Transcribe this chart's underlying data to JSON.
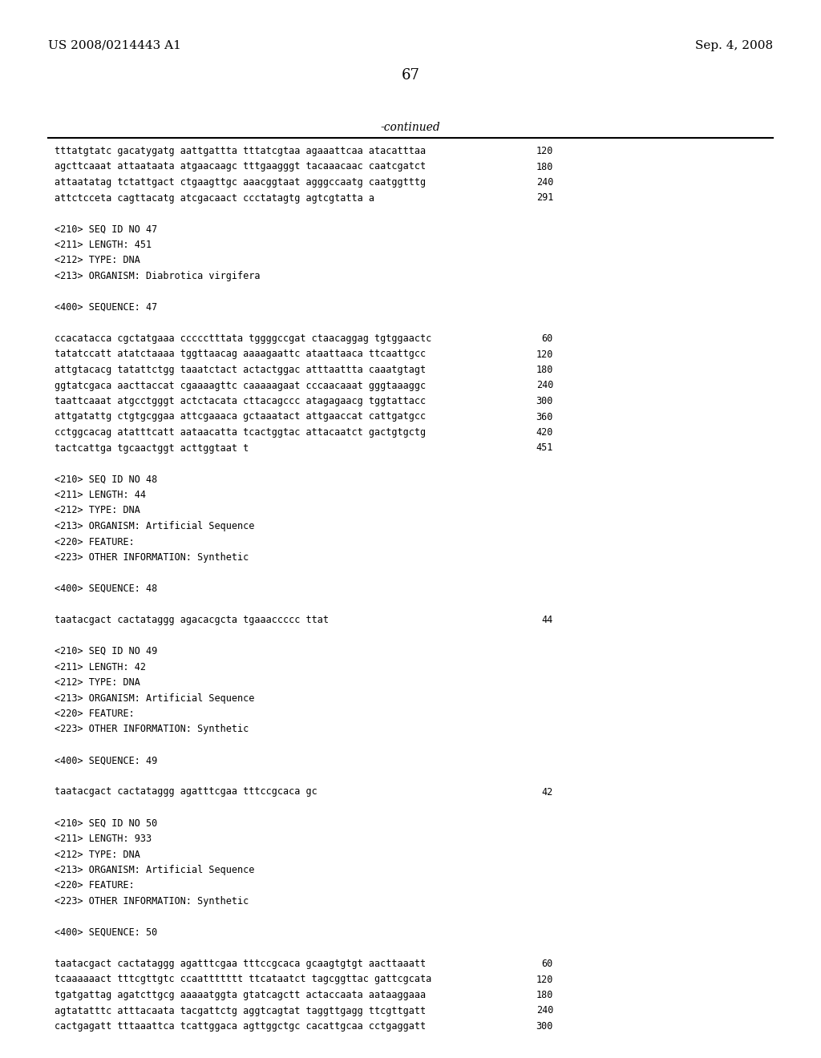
{
  "header_left": "US 2008/0214443 A1",
  "header_right": "Sep. 4, 2008",
  "page_number": "67",
  "continued_label": "-continued",
  "background_color": "#ffffff",
  "text_color": "#000000",
  "lines": [
    {
      "text": "tttatgtatc gacatygatg aattgattta tttatcgtaa agaaattcaa atacatttaa",
      "num": "120",
      "mono": true
    },
    {
      "text": "agcttcaaat attaataata atgaacaagc tttgaagggt tacaaacaac caatcgatct",
      "num": "180",
      "mono": true
    },
    {
      "text": "attaatatag tctattgact ctgaagttgc aaacggtaat agggccaatg caatggtttg",
      "num": "240",
      "mono": true
    },
    {
      "text": "attctcceta cagttacatg atcgacaact ccctatagtg agtcgtatta a",
      "num": "291",
      "mono": true
    },
    {
      "text": "",
      "num": "",
      "mono": false
    },
    {
      "text": "<210> SEQ ID NO 47",
      "num": "",
      "mono": true
    },
    {
      "text": "<211> LENGTH: 451",
      "num": "",
      "mono": true
    },
    {
      "text": "<212> TYPE: DNA",
      "num": "",
      "mono": true
    },
    {
      "text": "<213> ORGANISM: Diabrotica virgifera",
      "num": "",
      "mono": true
    },
    {
      "text": "",
      "num": "",
      "mono": false
    },
    {
      "text": "<400> SEQUENCE: 47",
      "num": "",
      "mono": true
    },
    {
      "text": "",
      "num": "",
      "mono": false
    },
    {
      "text": "ccacatacca cgctatgaaa ccccctttata tggggccgat ctaacaggag tgtggaactc",
      "num": "60",
      "mono": true
    },
    {
      "text": "tatatccatt atatctaaaa tggttaacag aaaagaattc ataattaaca ttcaattgcc",
      "num": "120",
      "mono": true
    },
    {
      "text": "attgtacacg tatattctgg taaatctact actactggac atttaattta caaatgtagt",
      "num": "180",
      "mono": true
    },
    {
      "text": "ggtatcgaca aacttaccat cgaaaagttc caaaaagaat cccaacaaat gggtaaaggc",
      "num": "240",
      "mono": true
    },
    {
      "text": "taattcaaat atgcctgggt actctacata cttacagccc atagagaacg tggtattacc",
      "num": "300",
      "mono": true
    },
    {
      "text": "attgatattg ctgtgcggaa attcgaaaca gctaaatact attgaaccat cattgatgcc",
      "num": "360",
      "mono": true
    },
    {
      "text": "cctggcacag atatttcatt aataacatta tcactggtac attacaatct gactgtgctg",
      "num": "420",
      "mono": true
    },
    {
      "text": "tactcattga tgcaactggt acttggtaat t",
      "num": "451",
      "mono": true
    },
    {
      "text": "",
      "num": "",
      "mono": false
    },
    {
      "text": "<210> SEQ ID NO 48",
      "num": "",
      "mono": true
    },
    {
      "text": "<211> LENGTH: 44",
      "num": "",
      "mono": true
    },
    {
      "text": "<212> TYPE: DNA",
      "num": "",
      "mono": true
    },
    {
      "text": "<213> ORGANISM: Artificial Sequence",
      "num": "",
      "mono": true
    },
    {
      "text": "<220> FEATURE:",
      "num": "",
      "mono": true
    },
    {
      "text": "<223> OTHER INFORMATION: Synthetic",
      "num": "",
      "mono": true
    },
    {
      "text": "",
      "num": "",
      "mono": false
    },
    {
      "text": "<400> SEQUENCE: 48",
      "num": "",
      "mono": true
    },
    {
      "text": "",
      "num": "",
      "mono": false
    },
    {
      "text": "taatacgact cactataggg agacacgcta tgaaaccccc ttat",
      "num": "44",
      "mono": true
    },
    {
      "text": "",
      "num": "",
      "mono": false
    },
    {
      "text": "<210> SEQ ID NO 49",
      "num": "",
      "mono": true
    },
    {
      "text": "<211> LENGTH: 42",
      "num": "",
      "mono": true
    },
    {
      "text": "<212> TYPE: DNA",
      "num": "",
      "mono": true
    },
    {
      "text": "<213> ORGANISM: Artificial Sequence",
      "num": "",
      "mono": true
    },
    {
      "text": "<220> FEATURE:",
      "num": "",
      "mono": true
    },
    {
      "text": "<223> OTHER INFORMATION: Synthetic",
      "num": "",
      "mono": true
    },
    {
      "text": "",
      "num": "",
      "mono": false
    },
    {
      "text": "<400> SEQUENCE: 49",
      "num": "",
      "mono": true
    },
    {
      "text": "",
      "num": "",
      "mono": false
    },
    {
      "text": "taatacgact cactataggg agatttcgaa tttccgcaca gc",
      "num": "42",
      "mono": true
    },
    {
      "text": "",
      "num": "",
      "mono": false
    },
    {
      "text": "<210> SEQ ID NO 50",
      "num": "",
      "mono": true
    },
    {
      "text": "<211> LENGTH: 933",
      "num": "",
      "mono": true
    },
    {
      "text": "<212> TYPE: DNA",
      "num": "",
      "mono": true
    },
    {
      "text": "<213> ORGANISM: Artificial Sequence",
      "num": "",
      "mono": true
    },
    {
      "text": "<220> FEATURE:",
      "num": "",
      "mono": true
    },
    {
      "text": "<223> OTHER INFORMATION: Synthetic",
      "num": "",
      "mono": true
    },
    {
      "text": "",
      "num": "",
      "mono": false
    },
    {
      "text": "<400> SEQUENCE: 50",
      "num": "",
      "mono": true
    },
    {
      "text": "",
      "num": "",
      "mono": false
    },
    {
      "text": "taatacgact cactataggg agatttcgaa tttccgcaca gcaagtgtgt aacttaaatt",
      "num": "60",
      "mono": true
    },
    {
      "text": "tcaaaaaact tttcgttgtc ccaattttttt ttcataatct tagcggttac gattcgcata",
      "num": "120",
      "mono": true
    },
    {
      "text": "tgatgattag agatcttgcg aaaaatggta gtatcagctt actaccaata aataaggaaa",
      "num": "180",
      "mono": true
    },
    {
      "text": "agtatatttc atttacaata tacgattctg aggtcagtat taggttgagg ttcgttgatt",
      "num": "240",
      "mono": true
    },
    {
      "text": "cactgagatt tttaaattca tcattggaca agttggctgc cacattgcaa cctgaggatt",
      "num": "300",
      "mono": true
    }
  ]
}
